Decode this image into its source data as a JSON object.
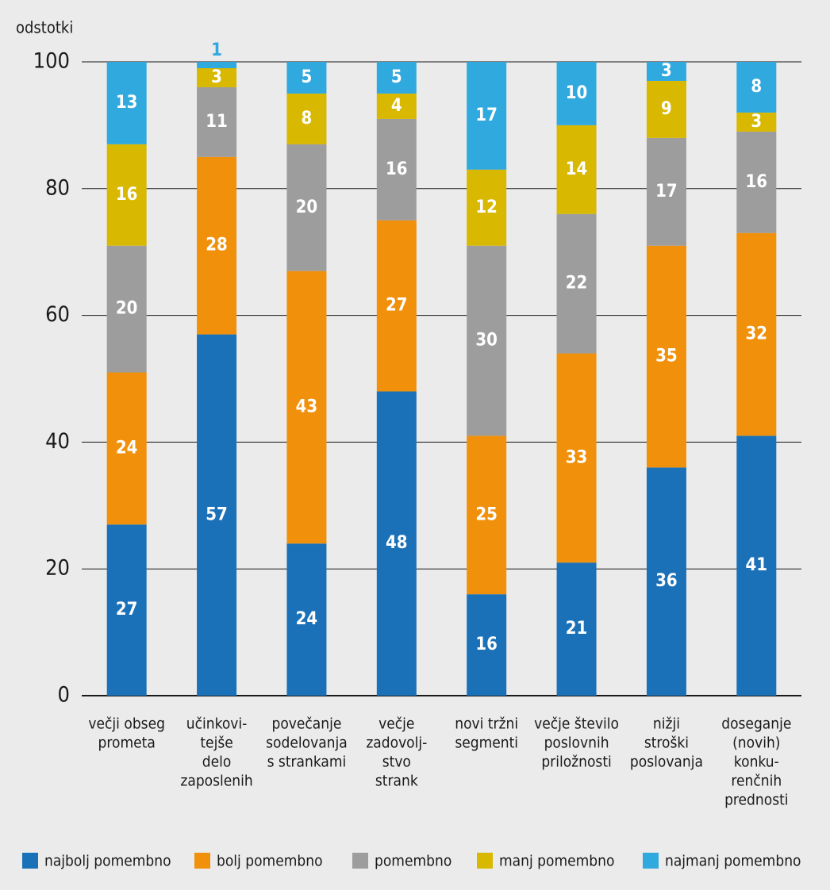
{
  "chart_data": {
    "type": "stacked_bar",
    "y_axis_label": "odstotki",
    "categories": [
      [
        "večji obseg",
        "prometa"
      ],
      [
        "učinkovi-",
        "tejše",
        "delo",
        "zaposlenih"
      ],
      [
        "povečanje",
        "sodelovanja",
        "s strankami"
      ],
      [
        "večje",
        "zadovolj-",
        "stvo",
        "strank"
      ],
      [
        "novi tržni",
        "segmenti"
      ],
      [
        "večje število",
        "poslovnih",
        "priložnosti"
      ],
      [
        "nižji",
        "stroški",
        "poslovanja"
      ],
      [
        "doseganje",
        "(novih)",
        "konku-",
        "renčnih",
        "prednosti"
      ]
    ],
    "series": [
      {
        "name": "najbolj pomembno",
        "color": "#1b71b8",
        "values": [
          27,
          57,
          24,
          48,
          16,
          21,
          36,
          41
        ]
      },
      {
        "name": "bolj pomembno",
        "color": "#f0900b",
        "values": [
          24,
          28,
          43,
          27,
          25,
          33,
          35,
          32
        ]
      },
      {
        "name": "pomembno",
        "color": "#9d9d9d",
        "values": [
          20,
          11,
          20,
          16,
          30,
          22,
          17,
          16
        ]
      },
      {
        "name": "manj pomembno",
        "color": "#d8b800",
        "values": [
          16,
          3,
          8,
          4,
          12,
          14,
          9,
          3
        ]
      },
      {
        "name": "najmanj pomembno",
        "color": "#30a9de",
        "values": [
          13,
          1,
          5,
          5,
          17,
          10,
          3,
          8
        ]
      }
    ],
    "ylim": [
      0,
      100
    ],
    "yticks": [
      0,
      20,
      40,
      60,
      80,
      100
    ],
    "grid": true,
    "legend": "bottom"
  }
}
